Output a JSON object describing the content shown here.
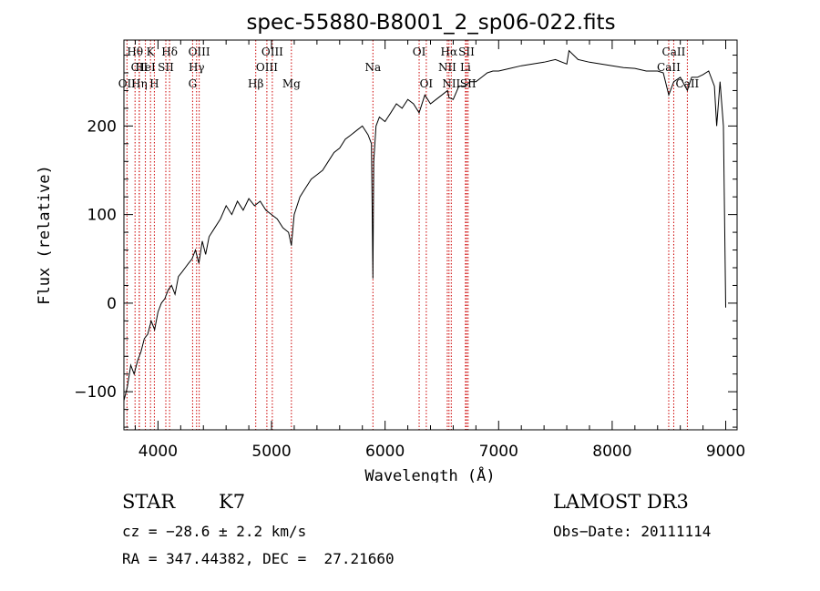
{
  "chart_data": {
    "type": "line",
    "title": "spec-55880-B8001_2_sp06-022.fits",
    "xlabel": "Wavelength (Å)",
    "ylabel": "Flux (relative)",
    "xlim": [
      3700,
      9100
    ],
    "ylim": [
      -143,
      297
    ],
    "xticks": [
      4000,
      5000,
      6000,
      7000,
      8000,
      9000
    ],
    "xtick_labels": [
      "4000",
      "5000",
      "6000",
      "7000",
      "8000",
      "9000"
    ],
    "yticks": [
      -100,
      0,
      100,
      200
    ],
    "ytick_labels": [
      "−100",
      "0",
      "100",
      "200"
    ],
    "grid": false,
    "series": [
      {
        "name": "spectrum",
        "x": [
          3700,
          3730,
          3760,
          3790,
          3820,
          3850,
          3880,
          3910,
          3940,
          3970,
          4000,
          4030,
          4060,
          4090,
          4120,
          4150,
          4180,
          4210,
          4240,
          4270,
          4300,
          4330,
          4360,
          4390,
          4420,
          4450,
          4500,
          4550,
          4600,
          4650,
          4700,
          4750,
          4800,
          4850,
          4900,
          4950,
          5000,
          5050,
          5100,
          5150,
          5175,
          5200,
          5250,
          5300,
          5350,
          5400,
          5450,
          5500,
          5550,
          5600,
          5650,
          5700,
          5750,
          5800,
          5850,
          5880,
          5893,
          5900,
          5920,
          5950,
          6000,
          6050,
          6100,
          6150,
          6200,
          6250,
          6300,
          6350,
          6400,
          6450,
          6500,
          6550,
          6563,
          6600,
          6650,
          6700,
          6750,
          6800,
          6850,
          6900,
          6950,
          7000,
          7100,
          7200,
          7300,
          7400,
          7500,
          7600,
          7620,
          7700,
          7800,
          7900,
          8000,
          8100,
          8200,
          8300,
          8400,
          8450,
          8498,
          8542,
          8600,
          8662,
          8700,
          8750,
          8800,
          8850,
          8900,
          8920,
          8950,
          8980,
          9000
        ],
        "values": [
          -110,
          -95,
          -70,
          -80,
          -65,
          -55,
          -40,
          -35,
          -20,
          -30,
          -10,
          0,
          5,
          15,
          20,
          10,
          30,
          35,
          40,
          45,
          50,
          60,
          45,
          70,
          55,
          75,
          85,
          95,
          110,
          100,
          115,
          105,
          118,
          110,
          115,
          105,
          100,
          95,
          85,
          80,
          65,
          100,
          120,
          130,
          140,
          145,
          150,
          160,
          170,
          175,
          185,
          190,
          195,
          200,
          190,
          180,
          28,
          160,
          200,
          210,
          205,
          215,
          225,
          220,
          230,
          225,
          215,
          235,
          225,
          230,
          235,
          240,
          232,
          230,
          245,
          245,
          250,
          250,
          255,
          260,
          262,
          262,
          265,
          268,
          270,
          272,
          275,
          270,
          285,
          275,
          272,
          270,
          268,
          266,
          265,
          262,
          262,
          260,
          235,
          250,
          255,
          240,
          255,
          255,
          258,
          262,
          245,
          200,
          250,
          200,
          -5
        ]
      }
    ],
    "line_markers": [
      {
        "label": "Hθ",
        "x": 3798,
        "row": 1
      },
      {
        "label": "CII",
        "x": 3836,
        "row": 2
      },
      {
        "label": "OII",
        "x": 3727,
        "row": 3
      },
      {
        "label": "K",
        "x": 3934,
        "row": 1
      },
      {
        "label": "HeI",
        "x": 3889,
        "row": 2
      },
      {
        "label": "Hη",
        "x": 3835,
        "row": 3
      },
      {
        "label": "Hδ",
        "x": 4102,
        "row": 1
      },
      {
        "label": "SII",
        "x": 4069,
        "row": 2
      },
      {
        "label": "H",
        "x": 3968,
        "row": 3
      },
      {
        "label": "OIII",
        "x": 4363,
        "row": 1
      },
      {
        "label": "Hγ",
        "x": 4340,
        "row": 2
      },
      {
        "label": "G",
        "x": 4305,
        "row": 3
      },
      {
        "label": "OIII",
        "x": 5007,
        "row": 1
      },
      {
        "label": "OIII",
        "x": 4959,
        "row": 2
      },
      {
        "label": "Hβ",
        "x": 4861,
        "row": 3
      },
      {
        "label": "Mg",
        "x": 5175,
        "row": 3
      },
      {
        "label": "Na",
        "x": 5893,
        "row": 2
      },
      {
        "label": "OI",
        "x": 6300,
        "row": 1
      },
      {
        "label": "OI",
        "x": 6363,
        "row": 3
      },
      {
        "label": "Hα",
        "x": 6563,
        "row": 1
      },
      {
        "label": "SII",
        "x": 6717,
        "row": 1
      },
      {
        "label": "NII",
        "x": 6548,
        "row": 2
      },
      {
        "label": "Li",
        "x": 6708,
        "row": 2
      },
      {
        "label": "NII",
        "x": 6583,
        "row": 3
      },
      {
        "label": "SII",
        "x": 6731,
        "row": 3
      },
      {
        "label": "CaII",
        "x": 8542,
        "row": 1
      },
      {
        "label": "CaII",
        "x": 8498,
        "row": 2
      },
      {
        "label": "CaII",
        "x": 8662,
        "row": 3
      }
    ],
    "line_marker_color": "#cc0000"
  },
  "info": {
    "class_label": "STAR",
    "subclass": "K7",
    "survey": "LAMOST DR3",
    "cz": "cz = −28.6 ± 2.2 km/s",
    "obs_date": "Obs−Date: 20111114",
    "coords": "RA = 347.44382, DEC =  27.21660"
  }
}
